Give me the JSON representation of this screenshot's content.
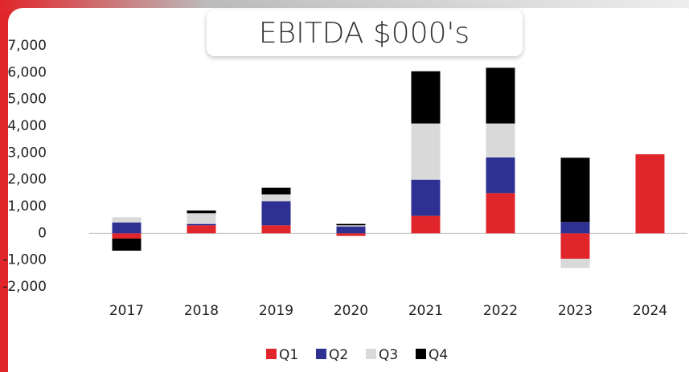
{
  "chart_data": {
    "type": "stacked_bar",
    "title": "EBITDA $000's",
    "categories": [
      "2017",
      "2018",
      "2019",
      "2020",
      "2021",
      "2022",
      "2023",
      "2024"
    ],
    "series": [
      {
        "name": "Q1",
        "color": "#e0262b",
        "values": [
          -200,
          300,
          300,
          -100,
          650,
          1500,
          -950,
          2950
        ]
      },
      {
        "name": "Q2",
        "color": "#2e3192",
        "values": [
          400,
          50,
          900,
          250,
          1350,
          1330,
          420,
          null
        ]
      },
      {
        "name": "Q3",
        "color": "#d9d9d9",
        "values": [
          200,
          400,
          250,
          50,
          2100,
          1270,
          -350,
          null
        ]
      },
      {
        "name": "Q4",
        "color": "#000000",
        "values": [
          -450,
          100,
          250,
          50,
          1950,
          2080,
          2400,
          null
        ]
      }
    ],
    "ylim": [
      -2000,
      7000
    ],
    "yticks": [
      {
        "value": -2000,
        "label": "-2,000"
      },
      {
        "value": -1000,
        "label": "-1,000"
      },
      0,
      {
        "value": 1000,
        "label": "1,000"
      },
      {
        "value": 2000,
        "label": "2,000"
      },
      {
        "value": 3000,
        "label": "3,000"
      },
      {
        "value": 4000,
        "label": "4,000"
      },
      {
        "value": 5000,
        "label": "5,000"
      },
      {
        "value": 6000,
        "label": "6,000"
      },
      {
        "value": 7000,
        "label": "7,000"
      }
    ],
    "grid": false,
    "legend": "bottom"
  }
}
